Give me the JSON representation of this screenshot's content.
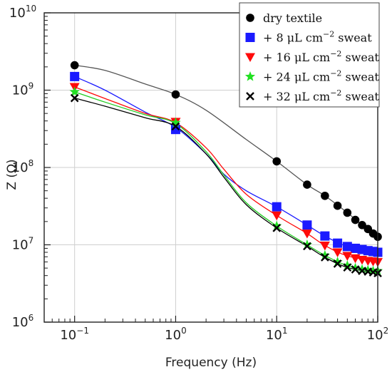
{
  "chart_data": {
    "type": "scatter",
    "title": "",
    "xlabel": "Frequency (Hz)",
    "ylabel": "Z (Ω)",
    "xscale": "log",
    "yscale": "log",
    "xlim": [
      0.05,
      100
    ],
    "ylim": [
      1000000,
      10000000000
    ],
    "grid": true,
    "legend_position": "top-right",
    "x_ticks": [
      {
        "value": 0.1,
        "base": "10",
        "exp": "−1"
      },
      {
        "value": 1,
        "base": "10",
        "exp": "0"
      },
      {
        "value": 10,
        "base": "10",
        "exp": "1"
      },
      {
        "value": 100,
        "base": "10",
        "exp": "2"
      }
    ],
    "y_ticks": [
      {
        "value": 1000000,
        "base": "10",
        "exp": "6"
      },
      {
        "value": 10000000,
        "base": "10",
        "exp": "7"
      },
      {
        "value": 100000000,
        "base": "10",
        "exp": "8"
      },
      {
        "value": 1000000000,
        "base": "10",
        "exp": "9"
      },
      {
        "value": 10000000000,
        "base": "10",
        "exp": "10"
      }
    ],
    "series": [
      {
        "name": "dry textile",
        "legend": {
          "prefix": "dry textile",
          "sup": "",
          "suffix": ""
        },
        "marker": "circle",
        "color": "#000000",
        "line_color": "#555555",
        "x": [
          0.1,
          1,
          10,
          20,
          30,
          40,
          50,
          60,
          70,
          80,
          90,
          100
        ],
        "y": [
          2100000000,
          880000000,
          120000000,
          60000000,
          43000000,
          32000000,
          26000000,
          21000000,
          18000000,
          16000000,
          14000000,
          12700000
        ],
        "fit": [
          [
            0.1,
            2100000000
          ],
          [
            0.2,
            1800000000
          ],
          [
            0.5,
            1200000000
          ],
          [
            1,
            880000000
          ],
          [
            2,
            550000000
          ],
          [
            5,
            230000000
          ],
          [
            10,
            120000000
          ],
          [
            20,
            60000000
          ],
          [
            30,
            43000000
          ],
          [
            50,
            26000000
          ],
          [
            70,
            18000000
          ],
          [
            100,
            12700000
          ]
        ]
      },
      {
        "name": "+ 8 μL cm−2 sweat",
        "legend": {
          "prefix": "+   8 μL cm",
          "sup": "−2",
          "suffix": " sweat"
        },
        "marker": "square",
        "color": "#1a1aff",
        "line_color": "#1a1aff",
        "x": [
          0.1,
          1,
          10,
          20,
          30,
          40,
          50,
          60,
          70,
          80,
          90,
          100
        ],
        "y": [
          1500000000,
          310000000,
          31000000,
          18000000,
          13000000,
          10500000,
          9500000,
          9000000,
          8700000,
          8400000,
          8200000,
          8000000
        ],
        "fit": [
          [
            0.1,
            1500000000
          ],
          [
            0.2,
            1000000000
          ],
          [
            0.5,
            520000000
          ],
          [
            1,
            330000000
          ],
          [
            2,
            150000000
          ],
          [
            3,
            82000000
          ],
          [
            5,
            50000000
          ],
          [
            10,
            31000000
          ],
          [
            20,
            18000000
          ],
          [
            30,
            13000000
          ],
          [
            50,
            9500000
          ],
          [
            100,
            8000000
          ]
        ]
      },
      {
        "name": "+ 16 μL cm−2 sweat",
        "legend": {
          "prefix": "+ 16 μL cm",
          "sup": "−2",
          "suffix": " sweat"
        },
        "marker": "triangle-down",
        "color": "#ff0a0a",
        "line_color": "#ff0a0a",
        "x": [
          0.1,
          1,
          10,
          20,
          30,
          40,
          50,
          60,
          70,
          80,
          90,
          100
        ],
        "y": [
          1100000000,
          390000000,
          24000000,
          14000000,
          9800000,
          8000000,
          7200000,
          6700000,
          6400000,
          6200000,
          6100000,
          6000000
        ],
        "fit": [
          [
            0.1,
            1100000000
          ],
          [
            0.2,
            780000000
          ],
          [
            0.5,
            500000000
          ],
          [
            1,
            380000000
          ],
          [
            2,
            180000000
          ],
          [
            3,
            95000000
          ],
          [
            5,
            45000000
          ],
          [
            10,
            24000000
          ],
          [
            20,
            14000000
          ],
          [
            30,
            9800000
          ],
          [
            50,
            7200000
          ],
          [
            100,
            6000000
          ]
        ]
      },
      {
        "name": "+ 24 μL cm−2 sweat",
        "legend": {
          "prefix": "+ 24 μL cm",
          "sup": "−2",
          "suffix": " sweat"
        },
        "marker": "star",
        "color": "#22e022",
        "line_color": "#22cc22",
        "x": [
          0.1,
          1,
          10,
          20,
          30,
          40,
          50,
          60,
          70,
          80,
          90,
          100
        ],
        "y": [
          950000000,
          380000000,
          17500000,
          10000000,
          7300000,
          6000000,
          5400000,
          5000000,
          4800000,
          4700000,
          4600000,
          4600000
        ],
        "fit": [
          [
            0.1,
            950000000
          ],
          [
            0.2,
            700000000
          ],
          [
            0.5,
            480000000
          ],
          [
            1,
            370000000
          ],
          [
            2,
            160000000
          ],
          [
            3,
            80000000
          ],
          [
            5,
            35000000
          ],
          [
            10,
            17500000
          ],
          [
            20,
            10000000
          ],
          [
            30,
            7300000
          ],
          [
            50,
            5400000
          ],
          [
            100,
            4600000
          ]
        ]
      },
      {
        "name": "+ 32 μL cm−2 sweat",
        "legend": {
          "prefix": "+ 32 μL cm",
          "sup": "−2",
          "suffix": " sweat"
        },
        "marker": "x",
        "color": "#000000",
        "line_color": "#000000",
        "x": [
          0.1,
          1,
          10,
          20,
          30,
          40,
          50,
          60,
          70,
          80,
          90,
          100
        ],
        "y": [
          790000000,
          340000000,
          16500000,
          9600000,
          6900000,
          5700000,
          5100000,
          4800000,
          4600000,
          4500000,
          4400000,
          4300000
        ],
        "fit": [
          [
            0.1,
            790000000
          ],
          [
            0.2,
            620000000
          ],
          [
            0.5,
            440000000
          ],
          [
            1,
            340000000
          ],
          [
            2,
            150000000
          ],
          [
            3,
            75000000
          ],
          [
            5,
            33000000
          ],
          [
            10,
            16500000
          ],
          [
            20,
            9600000
          ],
          [
            30,
            6900000
          ],
          [
            50,
            5100000
          ],
          [
            100,
            4300000
          ]
        ]
      }
    ]
  }
}
